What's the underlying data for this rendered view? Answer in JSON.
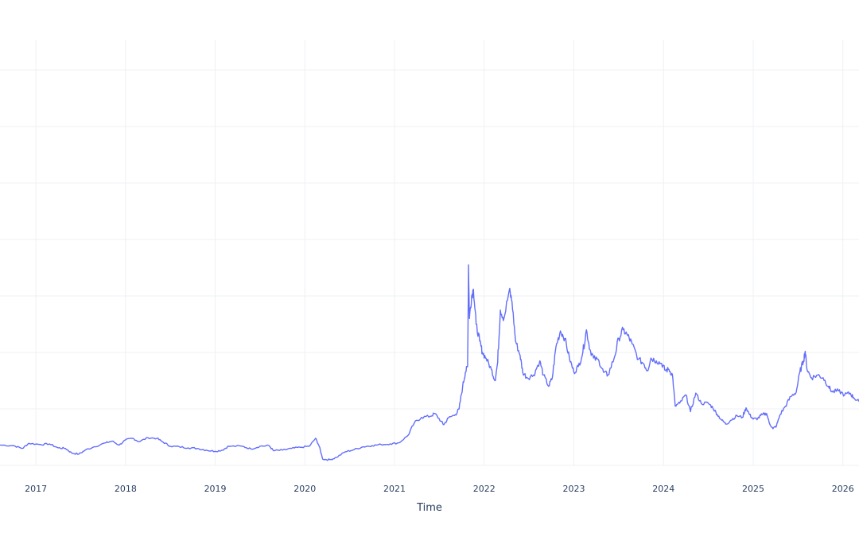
{
  "chart_data": {
    "type": "line",
    "title": "",
    "xlabel": "Time",
    "ylabel": "",
    "x_ticks": [
      "2017",
      "2018",
      "2019",
      "2020",
      "2021",
      "2022",
      "2023",
      "2024",
      "2025",
      "2026"
    ],
    "xlim": [
      2016.6,
      2026.18
    ],
    "ylim": [
      0,
      100
    ],
    "y_grid": [
      0,
      10,
      20,
      30,
      40,
      50,
      60,
      70
    ],
    "grid": true,
    "colors": {
      "series": "#636efa",
      "grid": "#eef0f5",
      "text": "#2a3f5f"
    },
    "series": [
      {
        "name": "",
        "points": [
          [
            2016.6,
            3.6
          ],
          [
            2016.75,
            3.5
          ],
          [
            2016.85,
            3.0
          ],
          [
            2016.92,
            3.9
          ],
          [
            2017.05,
            3.7
          ],
          [
            2017.15,
            3.8
          ],
          [
            2017.25,
            3.1
          ],
          [
            2017.33,
            3.0
          ],
          [
            2017.4,
            2.2
          ],
          [
            2017.48,
            2.0
          ],
          [
            2017.55,
            2.7
          ],
          [
            2017.65,
            3.3
          ],
          [
            2017.78,
            4.0
          ],
          [
            2017.85,
            4.3
          ],
          [
            2017.93,
            3.6
          ],
          [
            2018.0,
            4.5
          ],
          [
            2018.08,
            4.8
          ],
          [
            2018.15,
            4.2
          ],
          [
            2018.25,
            4.9
          ],
          [
            2018.35,
            4.8
          ],
          [
            2018.42,
            4.1
          ],
          [
            2018.5,
            3.4
          ],
          [
            2018.6,
            3.3
          ],
          [
            2018.7,
            3.1
          ],
          [
            2018.8,
            3.0
          ],
          [
            2018.9,
            2.7
          ],
          [
            2019.0,
            2.5
          ],
          [
            2019.08,
            2.7
          ],
          [
            2019.15,
            3.4
          ],
          [
            2019.3,
            3.4
          ],
          [
            2019.4,
            2.9
          ],
          [
            2019.5,
            3.4
          ],
          [
            2019.6,
            3.5
          ],
          [
            2019.65,
            2.6
          ],
          [
            2019.75,
            2.7
          ],
          [
            2019.85,
            3.0
          ],
          [
            2019.95,
            3.2
          ],
          [
            2020.05,
            3.4
          ],
          [
            2020.12,
            4.8
          ],
          [
            2020.16,
            3.4
          ],
          [
            2020.2,
            1.1
          ],
          [
            2020.28,
            1.0
          ],
          [
            2020.35,
            1.4
          ],
          [
            2020.45,
            2.4
          ],
          [
            2020.55,
            2.8
          ],
          [
            2020.65,
            3.3
          ],
          [
            2020.75,
            3.5
          ],
          [
            2020.85,
            3.7
          ],
          [
            2020.95,
            3.8
          ],
          [
            2021.05,
            4.0
          ],
          [
            2021.15,
            5.3
          ],
          [
            2021.22,
            7.5
          ],
          [
            2021.3,
            8.5
          ],
          [
            2021.4,
            8.7
          ],
          [
            2021.45,
            9.2
          ],
          [
            2021.52,
            7.8
          ],
          [
            2021.55,
            7.2
          ],
          [
            2021.6,
            8.4
          ],
          [
            2021.68,
            9.0
          ],
          [
            2021.72,
            10.0
          ],
          [
            2021.76,
            14.0
          ],
          [
            2021.79,
            16.5
          ],
          [
            2021.815,
            17.5
          ],
          [
            2021.825,
            35.5
          ],
          [
            2021.835,
            26.0
          ],
          [
            2021.86,
            30.0
          ],
          [
            2021.88,
            31.2
          ],
          [
            2021.91,
            25.0
          ],
          [
            2021.95,
            22.0
          ],
          [
            2021.98,
            20.0
          ],
          [
            2022.02,
            19.0
          ],
          [
            2022.08,
            17.0
          ],
          [
            2022.12,
            15.0
          ],
          [
            2022.15,
            18.2
          ],
          [
            2022.18,
            27.5
          ],
          [
            2022.22,
            26.0
          ],
          [
            2022.28,
            31.0
          ],
          [
            2022.31,
            29.0
          ],
          [
            2022.35,
            22.0
          ],
          [
            2022.4,
            19.5
          ],
          [
            2022.43,
            16.5
          ],
          [
            2022.48,
            15.5
          ],
          [
            2022.55,
            16.0
          ],
          [
            2022.62,
            18.5
          ],
          [
            2022.66,
            16.0
          ],
          [
            2022.72,
            14.0
          ],
          [
            2022.76,
            15.5
          ],
          [
            2022.8,
            21.0
          ],
          [
            2022.85,
            23.8
          ],
          [
            2022.9,
            22.5
          ],
          [
            2022.95,
            19.0
          ],
          [
            2023.0,
            16.5
          ],
          [
            2023.05,
            17.5
          ],
          [
            2023.1,
            20.0
          ],
          [
            2023.14,
            24.0
          ],
          [
            2023.18,
            20.5
          ],
          [
            2023.22,
            19.0
          ],
          [
            2023.28,
            18.5
          ],
          [
            2023.33,
            16.5
          ],
          [
            2023.38,
            16.0
          ],
          [
            2023.45,
            19.0
          ],
          [
            2023.5,
            22.5
          ],
          [
            2023.55,
            24.0
          ],
          [
            2023.6,
            23.0
          ],
          [
            2023.65,
            21.5
          ],
          [
            2023.72,
            18.8
          ],
          [
            2023.78,
            18.0
          ],
          [
            2023.82,
            16.8
          ],
          [
            2023.86,
            19.0
          ],
          [
            2023.92,
            18.5
          ],
          [
            2023.98,
            18.0
          ],
          [
            2024.02,
            16.8
          ],
          [
            2024.06,
            17.0
          ],
          [
            2024.1,
            16.0
          ],
          [
            2024.13,
            10.5
          ],
          [
            2024.18,
            11.0
          ],
          [
            2024.25,
            12.5
          ],
          [
            2024.3,
            9.5
          ],
          [
            2024.36,
            12.8
          ],
          [
            2024.42,
            11.0
          ],
          [
            2024.5,
            11.0
          ],
          [
            2024.55,
            10.2
          ],
          [
            2024.6,
            9.0
          ],
          [
            2024.65,
            8.0
          ],
          [
            2024.7,
            7.3
          ],
          [
            2024.75,
            8.0
          ],
          [
            2024.82,
            8.8
          ],
          [
            2024.88,
            8.5
          ],
          [
            2024.92,
            10.2
          ],
          [
            2024.96,
            9.0
          ],
          [
            2025.0,
            8.2
          ],
          [
            2025.05,
            8.3
          ],
          [
            2025.1,
            9.0
          ],
          [
            2025.15,
            9.2
          ],
          [
            2025.18,
            7.5
          ],
          [
            2025.22,
            6.5
          ],
          [
            2025.26,
            7.0
          ],
          [
            2025.3,
            9.0
          ],
          [
            2025.36,
            10.5
          ],
          [
            2025.42,
            12.2
          ],
          [
            2025.48,
            13.0
          ],
          [
            2025.52,
            16.5
          ],
          [
            2025.56,
            18.5
          ],
          [
            2025.58,
            20.2
          ],
          [
            2025.6,
            17.0
          ],
          [
            2025.65,
            15.5
          ],
          [
            2025.72,
            16.0
          ],
          [
            2025.78,
            15.5
          ],
          [
            2025.84,
            14.0
          ],
          [
            2025.88,
            13.0
          ],
          [
            2025.95,
            13.2
          ],
          [
            2026.02,
            12.5
          ],
          [
            2026.08,
            12.8
          ],
          [
            2026.12,
            12.0
          ],
          [
            2026.18,
            11.3
          ]
        ]
      }
    ]
  },
  "labels": {
    "xlabel": "Time"
  }
}
